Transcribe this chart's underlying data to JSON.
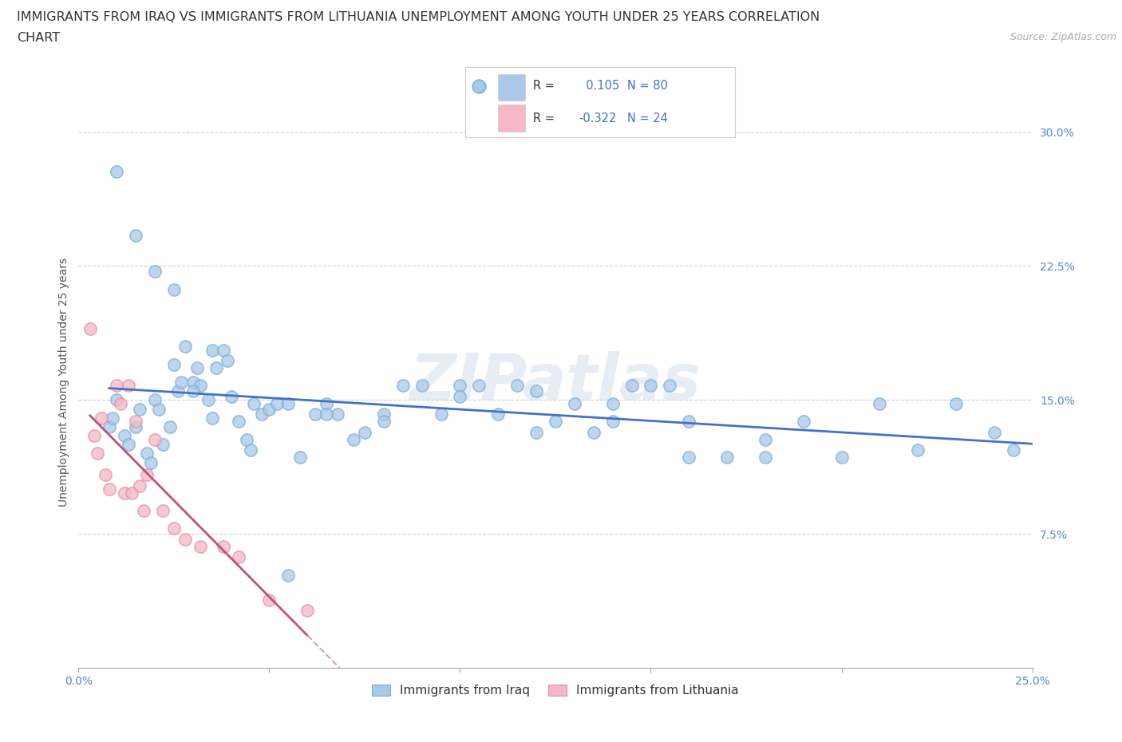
{
  "title_line1": "IMMIGRANTS FROM IRAQ VS IMMIGRANTS FROM LITHUANIA UNEMPLOYMENT AMONG YOUTH UNDER 25 YEARS CORRELATION",
  "title_line2": "CHART",
  "source_text": "Source: ZipAtlas.com",
  "ylabel": "Unemployment Among Youth under 25 years",
  "xlim": [
    0.0,
    0.25
  ],
  "ylim": [
    0.0,
    0.32
  ],
  "xtick_positions": [
    0.0,
    0.05,
    0.1,
    0.15,
    0.2,
    0.25
  ],
  "xticklabels": [
    "0.0%",
    "",
    "",
    "",
    "",
    "25.0%"
  ],
  "ytick_positions": [
    0.075,
    0.15,
    0.225,
    0.3
  ],
  "ytick_labels": [
    "7.5%",
    "15.0%",
    "22.5%",
    "30.0%"
  ],
  "background_color": "#ffffff",
  "grid_color": "#d0d0d0",
  "iraq_color": "#aac8e8",
  "iraq_edge_color": "#7ab0d8",
  "lithuania_color": "#f4b8c8",
  "lithuania_edge_color": "#e890a8",
  "iraq_line_color": "#4472c4",
  "lithuania_line_color": "#c0507a",
  "lithuania_dash_color": "#d8a0b8",
  "R_iraq": 0.105,
  "N_iraq": 80,
  "R_lithuania": -0.322,
  "N_lithuania": 24,
  "legend_label_iraq": "Immigrants from Iraq",
  "legend_label_lithuania": "Immigrants from Lithuania",
  "iraq_x": [
    0.008,
    0.009,
    0.01,
    0.012,
    0.013,
    0.015,
    0.016,
    0.018,
    0.019,
    0.02,
    0.021,
    0.022,
    0.024,
    0.025,
    0.026,
    0.027,
    0.028,
    0.03,
    0.031,
    0.032,
    0.034,
    0.035,
    0.036,
    0.038,
    0.039,
    0.04,
    0.042,
    0.044,
    0.046,
    0.048,
    0.05,
    0.052,
    0.055,
    0.058,
    0.062,
    0.065,
    0.068,
    0.072,
    0.075,
    0.08,
    0.085,
    0.09,
    0.095,
    0.1,
    0.105,
    0.11,
    0.115,
    0.12,
    0.125,
    0.13,
    0.135,
    0.14,
    0.145,
    0.15,
    0.155,
    0.16,
    0.17,
    0.18,
    0.19,
    0.2,
    0.21,
    0.22,
    0.23,
    0.24,
    0.245,
    0.01,
    0.015,
    0.02,
    0.025,
    0.03,
    0.035,
    0.045,
    0.055,
    0.065,
    0.08,
    0.1,
    0.12,
    0.14,
    0.16,
    0.18
  ],
  "iraq_y": [
    0.135,
    0.14,
    0.15,
    0.13,
    0.125,
    0.135,
    0.145,
    0.12,
    0.115,
    0.15,
    0.145,
    0.125,
    0.135,
    0.17,
    0.155,
    0.16,
    0.18,
    0.16,
    0.168,
    0.158,
    0.15,
    0.178,
    0.168,
    0.178,
    0.172,
    0.152,
    0.138,
    0.128,
    0.148,
    0.142,
    0.145,
    0.148,
    0.148,
    0.118,
    0.142,
    0.148,
    0.142,
    0.128,
    0.132,
    0.142,
    0.158,
    0.158,
    0.142,
    0.158,
    0.158,
    0.142,
    0.158,
    0.155,
    0.138,
    0.148,
    0.132,
    0.138,
    0.158,
    0.158,
    0.158,
    0.138,
    0.118,
    0.128,
    0.138,
    0.118,
    0.148,
    0.122,
    0.148,
    0.132,
    0.122,
    0.278,
    0.242,
    0.222,
    0.212,
    0.155,
    0.14,
    0.122,
    0.052,
    0.142,
    0.138,
    0.152,
    0.132,
    0.148,
    0.118,
    0.118
  ],
  "lithuania_x": [
    0.003,
    0.004,
    0.005,
    0.006,
    0.007,
    0.008,
    0.01,
    0.011,
    0.012,
    0.013,
    0.014,
    0.015,
    0.016,
    0.017,
    0.018,
    0.02,
    0.022,
    0.025,
    0.028,
    0.032,
    0.038,
    0.042,
    0.05,
    0.06
  ],
  "lithuania_y": [
    0.19,
    0.13,
    0.12,
    0.14,
    0.108,
    0.1,
    0.158,
    0.148,
    0.098,
    0.158,
    0.098,
    0.138,
    0.102,
    0.088,
    0.108,
    0.128,
    0.088,
    0.078,
    0.072,
    0.068,
    0.068,
    0.062,
    0.038,
    0.032
  ],
  "watermark_text": "ZIPatlas",
  "title_fontsize": 11.5,
  "axis_label_fontsize": 10,
  "tick_fontsize": 10,
  "legend_fontsize": 11
}
